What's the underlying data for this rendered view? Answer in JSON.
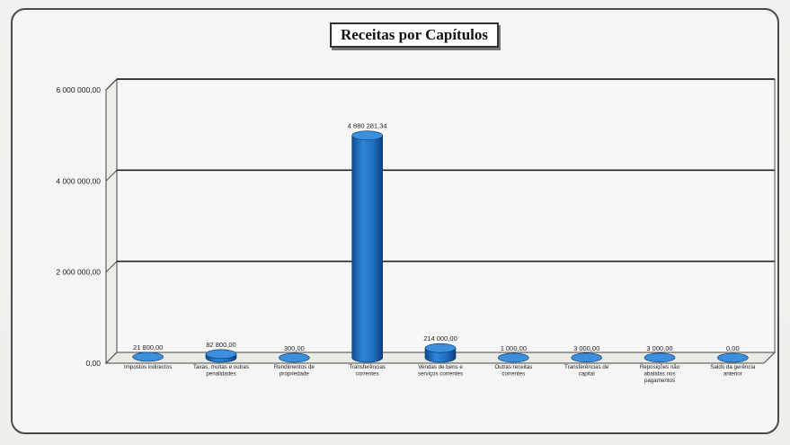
{
  "chart_data": {
    "type": "bar",
    "title": "Receitas por Capítulos",
    "categories": [
      "Impostos indirectos",
      "Taxas, multas e outras penalidades",
      "Rendimentos de propriedade",
      "Transferências correntes",
      "Vendas de bens e serviços correntes",
      "Outras receitas correntes",
      "Transferências de capital",
      "Reposições não abatidas nos pagamentos",
      "Saldo da gerência anterior"
    ],
    "values": [
      21800,
      82800,
      300,
      4880281.34,
      214000,
      1000,
      3000,
      3000,
      0
    ],
    "value_labels": [
      "21 800,00",
      "82 800,00",
      "300,00",
      "4 880 281,34",
      "214 000,00",
      "1 000,00",
      "3 000,00",
      "3 000,00",
      "0,00"
    ],
    "y_ticks": [
      "0,00",
      "2 000 000,00",
      "4 000 000,00",
      "6 000 000,00"
    ],
    "ylim": [
      0,
      6000000
    ],
    "grid": true,
    "bar_color": "#1f6fc0"
  }
}
